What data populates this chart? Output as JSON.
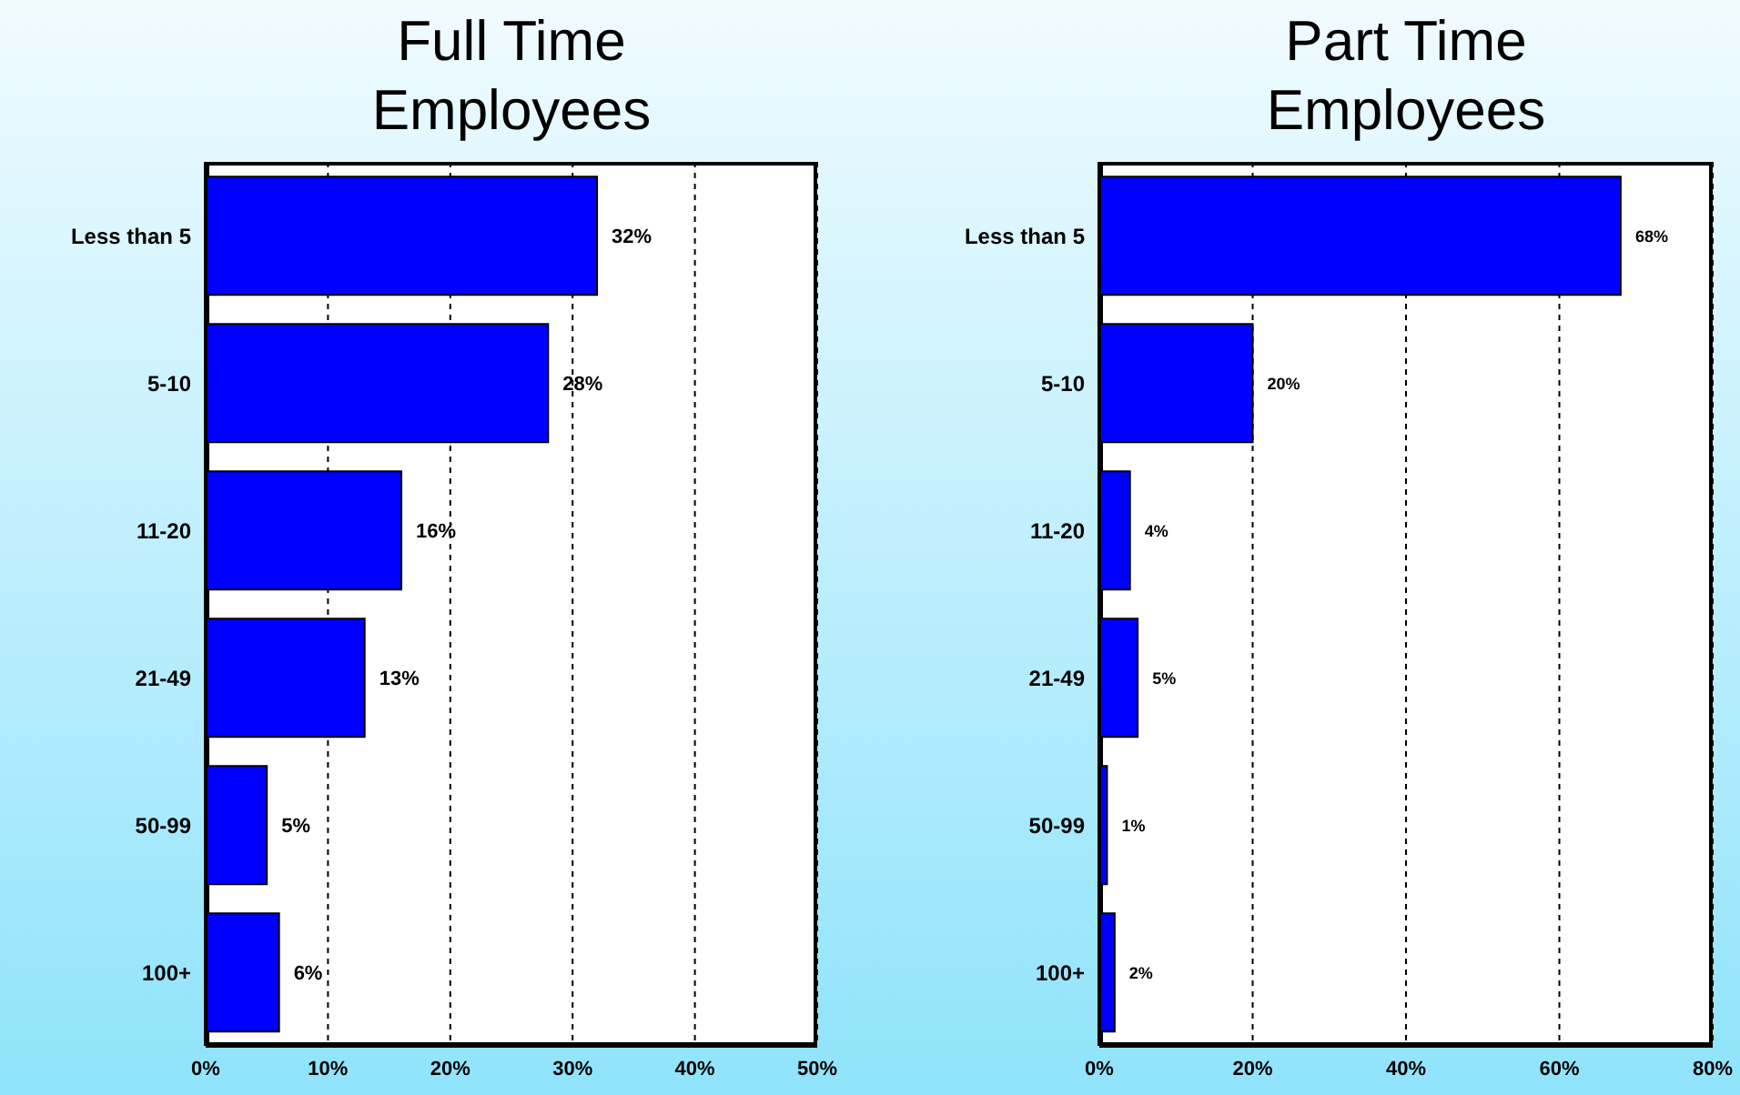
{
  "chart_data": [
    {
      "type": "bar",
      "orientation": "horizontal",
      "title": "Full Time Employees",
      "categories": [
        "Less than 5",
        "5-10",
        "11-20",
        "21-49",
        "50-99",
        "100+"
      ],
      "values": [
        32,
        28,
        16,
        13,
        5,
        6
      ],
      "value_labels": [
        "32%",
        "28%",
        "16%",
        "13%",
        "5%",
        "6%"
      ],
      "color": "#0000ff",
      "xlim": [
        0,
        50
      ],
      "xticks": [
        {
          "value": 0,
          "label": "0%"
        },
        {
          "value": 10,
          "label": "10%"
        },
        {
          "value": 20,
          "label": "20%"
        },
        {
          "value": 30,
          "label": "30%"
        },
        {
          "value": 40,
          "label": "40%"
        },
        {
          "value": 50,
          "label": "50%"
        }
      ],
      "grid": "x",
      "legend": false
    },
    {
      "type": "bar",
      "orientation": "horizontal",
      "title": "Part Time Employees",
      "categories": [
        "Less than 5",
        "5-10",
        "11-20",
        "21-49",
        "50-99",
        "100+"
      ],
      "values": [
        68,
        20,
        4,
        5,
        1,
        2
      ],
      "value_labels": [
        "68%",
        "20%",
        "4%",
        "5%",
        "1%",
        "2%"
      ],
      "color": "#0000ff",
      "xlim": [
        0,
        80
      ],
      "xticks": [
        {
          "value": 0,
          "label": "0%"
        },
        {
          "value": 20,
          "label": "20%"
        },
        {
          "value": 40,
          "label": "40%"
        },
        {
          "value": 60,
          "label": "60%"
        },
        {
          "value": 80,
          "label": "80%"
        }
      ],
      "grid": "x",
      "legend": false
    }
  ]
}
